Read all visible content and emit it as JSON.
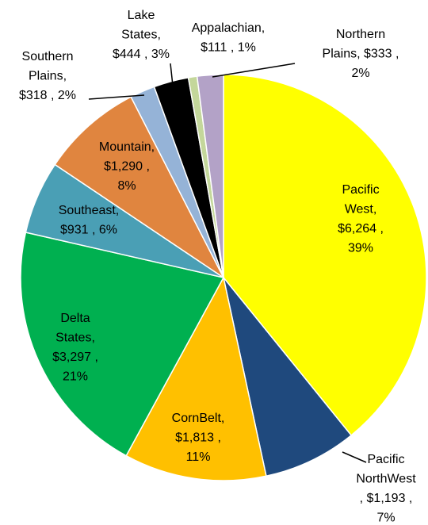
{
  "chart_data": {
    "type": "pie",
    "values": [
      6264,
      1193,
      1813,
      3297,
      931,
      1290,
      318,
      444,
      111,
      333
    ],
    "labels": [
      [
        "Pacific",
        "West,",
        "$6,264 ,",
        "39%"
      ],
      [
        "Pacific",
        "NorthWest",
        ", $1,193 ,",
        "7%"
      ],
      [
        "CornBelt,",
        "$1,813 ,",
        "11%"
      ],
      [
        "Delta",
        "States,",
        "$3,297 ,",
        "21%"
      ],
      [
        "Southeast,",
        "$931 , 6%"
      ],
      [
        "Mountain,",
        "$1,290 ,",
        "8%"
      ],
      [
        "Southern",
        "Plains,",
        "$318 , 2%"
      ],
      [
        "Lake",
        "States,",
        "$444 , 3%"
      ],
      [
        "Appalachian,",
        "$111 , 1%"
      ],
      [
        "Northern",
        "Plains,  $333 ,",
        "2%"
      ]
    ],
    "colors": [
      "#ffff00",
      "#1f497d",
      "#ffc000",
      "#00b050",
      "#4a9fb5",
      "#e0853f",
      "#95b3d7",
      "#000000",
      "#c4d79b",
      "#b3a2c7"
    ]
  }
}
